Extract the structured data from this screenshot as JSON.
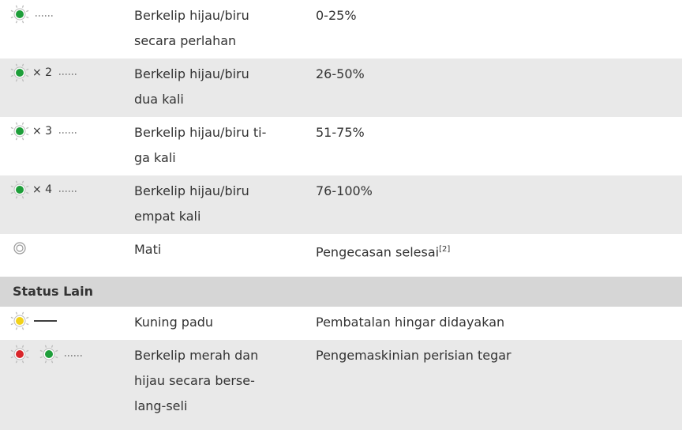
{
  "table": {
    "rows": [
      {
        "leds": [
          "#1e9e3a"
        ],
        "pattern": "blink",
        "lines": [
          "Berkelip hijau/biru",
          "secara perlahan"
        ],
        "status": "0-25%"
      },
      {
        "leds": [
          "#1e9e3a"
        ],
        "count": "× 2",
        "pattern": "blink",
        "lines": [
          "Berkelip hijau/biru",
          "dua kali"
        ],
        "status": "26-50%"
      },
      {
        "leds": [
          "#1e9e3a"
        ],
        "count": "× 3",
        "pattern": "blink",
        "lines": [
          "Berkelip hijau/biru ti-",
          "ga kali"
        ],
        "status": "51-75%"
      },
      {
        "leds": [
          "#1e9e3a"
        ],
        "count": "× 4",
        "pattern": "blink",
        "lines": [
          "Berkelip hijau/biru",
          "empat kali"
        ],
        "status": "76-100%"
      },
      {
        "leds": [
          "off"
        ],
        "lines": [
          "Mati"
        ],
        "status": "Pengecasan selesai",
        "note": "[2]"
      }
    ],
    "section": {
      "title": "Status Lain",
      "rows": [
        {
          "leds": [
            "#f2d21a"
          ],
          "pattern": "solid",
          "lines": [
            "Kuning padu"
          ],
          "status": "Pembatalan hingar didayakan"
        },
        {
          "leds": [
            "#d9252a",
            "#1e9e3a"
          ],
          "pattern": "blink",
          "lines": [
            "Berkelip merah dan",
            "hijau secara berse-",
            "lang-seli"
          ],
          "status": "Pengemaskinian perisian tegar"
        }
      ]
    }
  }
}
